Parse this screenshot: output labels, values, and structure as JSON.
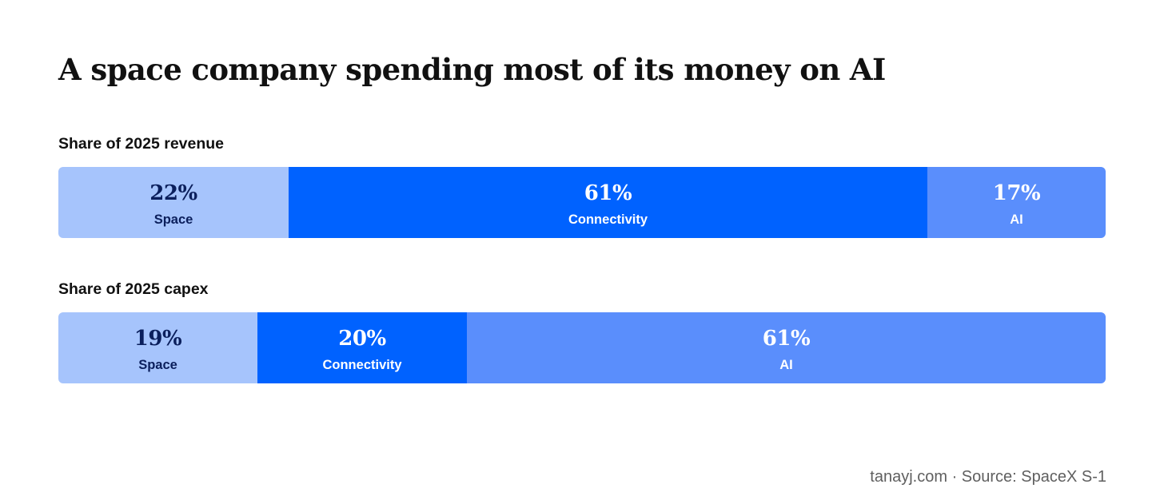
{
  "title": "A space company spending most of its money on AI",
  "source": "tanayj.com · Source: SpaceX S-1",
  "chart_data": {
    "type": "bar",
    "orientation": "horizontal",
    "stacked": true,
    "normalized": "percent",
    "title": "A space company spending most of its money on AI",
    "legend": "none",
    "grid": false,
    "bars": [
      {
        "label": "Share of 2025 revenue",
        "segments": [
          {
            "name": "Space",
            "value": 22,
            "label": "22%",
            "color": "#a6c4fc",
            "text_color": "#0b1f5c"
          },
          {
            "name": "Connectivity",
            "value": 61,
            "label": "61%",
            "color": "#0062ff",
            "text_color": "#ffffff"
          },
          {
            "name": "AI",
            "value": 17,
            "label": "17%",
            "color": "#5a8efc",
            "text_color": "#ffffff"
          }
        ]
      },
      {
        "label": "Share of 2025 capex",
        "segments": [
          {
            "name": "Space",
            "value": 19,
            "label": "19%",
            "color": "#a6c4fc",
            "text_color": "#0b1f5c"
          },
          {
            "name": "Connectivity",
            "value": 20,
            "label": "20%",
            "color": "#0062ff",
            "text_color": "#ffffff"
          },
          {
            "name": "AI",
            "value": 61,
            "label": "61%",
            "color": "#5a8efc",
            "text_color": "#ffffff"
          }
        ]
      }
    ]
  }
}
